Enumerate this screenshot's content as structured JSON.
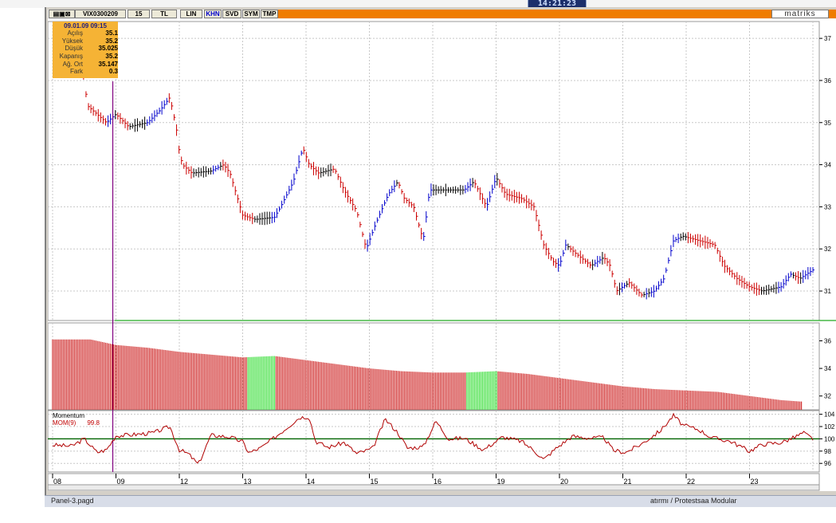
{
  "window": {
    "clock": "14:21:23",
    "brand": "matriks",
    "status_left": "Panel-3.pagd",
    "status_right": "atırmı / Protestsaa Modular",
    "toolbar": {
      "symbol": "VIX0300209",
      "interval": "15",
      "currency": "TL",
      "scale": "LIN",
      "buttons": [
        "KHN",
        "SVD",
        "SYM",
        "TMP"
      ]
    }
  },
  "info": {
    "date": "09.01.09 09:15",
    "rows": [
      {
        "label": "Açılış",
        "value": "35.1"
      },
      {
        "label": "Yüksek",
        "value": "35.2"
      },
      {
        "label": "Düşük",
        "value": "35.025"
      },
      {
        "label": "Kapanış",
        "value": "35.2"
      },
      {
        "label": "Ağ. Ort",
        "value": "35.147"
      },
      {
        "label": "Fark",
        "value": "0.3"
      }
    ]
  },
  "momentum": {
    "title": "Momentum",
    "name": "MOM(9)",
    "value": "99.8"
  },
  "colors": {
    "up": "#cc0000",
    "trend_black": "#000000",
    "trend_blue": "#0000cc",
    "vol_red": "#cc1c1c",
    "vol_green": "#33dd33",
    "mom_line": "#b00000",
    "mom_zero": "#006400",
    "grid": "#c8c8c8",
    "orange": "#ef7c00"
  },
  "chart_data": [
    {
      "type": "line",
      "title": "",
      "description_units": "price",
      "x": [
        "08",
        "09",
        "12",
        "13",
        "14",
        "15",
        "16",
        "19",
        "20",
        "21",
        "22",
        "23"
      ],
      "ylim": [
        30.3,
        37.4
      ],
      "yticks": [
        31,
        32,
        33,
        34,
        35,
        36,
        37
      ],
      "grid": true,
      "price_path": [
        [
          0.45,
          36.6
        ],
        [
          0.55,
          35.4
        ],
        [
          0.85,
          35.0
        ],
        [
          1.0,
          35.2
        ],
        [
          1.2,
          34.9
        ],
        [
          1.5,
          35.0
        ],
        [
          1.7,
          35.3
        ],
        [
          1.85,
          35.6
        ],
        [
          1.95,
          34.9
        ],
        [
          2.0,
          34.3
        ],
        [
          2.05,
          34.0
        ],
        [
          2.2,
          33.8
        ],
        [
          2.5,
          33.85
        ],
        [
          2.7,
          34.0
        ],
        [
          2.8,
          33.8
        ],
        [
          2.9,
          33.3
        ],
        [
          3.0,
          32.8
        ],
        [
          3.2,
          32.7
        ],
        [
          3.5,
          32.75
        ],
        [
          3.6,
          33.0
        ],
        [
          3.8,
          33.6
        ],
        [
          3.95,
          34.4
        ],
        [
          4.05,
          34.0
        ],
        [
          4.2,
          33.8
        ],
        [
          4.45,
          33.9
        ],
        [
          4.6,
          33.4
        ],
        [
          4.8,
          32.9
        ],
        [
          4.95,
          32.0
        ],
        [
          5.1,
          32.6
        ],
        [
          5.3,
          33.3
        ],
        [
          5.45,
          33.6
        ],
        [
          5.55,
          33.2
        ],
        [
          5.7,
          33.0
        ],
        [
          5.85,
          32.2
        ],
        [
          5.95,
          33.4
        ],
        [
          6.2,
          33.4
        ],
        [
          6.5,
          33.4
        ],
        [
          6.65,
          33.6
        ],
        [
          6.75,
          33.3
        ],
        [
          6.85,
          33.0
        ],
        [
          7.0,
          33.7
        ],
        [
          7.15,
          33.3
        ],
        [
          7.4,
          33.2
        ],
        [
          7.6,
          33.0
        ],
        [
          7.75,
          32.1
        ],
        [
          7.9,
          31.7
        ],
        [
          8.0,
          31.6
        ],
        [
          8.1,
          32.1
        ],
        [
          8.25,
          31.9
        ],
        [
          8.5,
          31.6
        ],
        [
          8.7,
          31.8
        ],
        [
          8.8,
          31.6
        ],
        [
          8.9,
          31.0
        ],
        [
          9.1,
          31.2
        ],
        [
          9.3,
          30.9
        ],
        [
          9.5,
          31.0
        ],
        [
          9.65,
          31.3
        ],
        [
          9.8,
          32.2
        ],
        [
          9.95,
          32.3
        ],
        [
          10.2,
          32.2
        ],
        [
          10.45,
          32.1
        ],
        [
          10.6,
          31.6
        ],
        [
          10.8,
          31.3
        ],
        [
          11.0,
          31.1
        ],
        [
          11.2,
          31.0
        ],
        [
          11.5,
          31.1
        ],
        [
          11.65,
          31.4
        ],
        [
          11.8,
          31.3
        ],
        [
          12.0,
          31.5
        ]
      ]
    },
    {
      "type": "bar",
      "title": "",
      "yticks": [
        32,
        34,
        36
      ],
      "ylim": [
        31,
        37.3
      ],
      "series_values": [
        [
          0.0,
          36.1
        ],
        [
          0.6,
          36.1
        ],
        [
          1.0,
          35.7
        ],
        [
          1.5,
          35.5
        ],
        [
          2.0,
          35.2
        ],
        [
          2.5,
          35.0
        ],
        [
          3.0,
          34.8
        ],
        [
          3.5,
          34.9
        ],
        [
          4.0,
          34.6
        ],
        [
          4.5,
          34.3
        ],
        [
          5.0,
          34.0
        ],
        [
          5.5,
          33.8
        ],
        [
          6.0,
          33.7
        ],
        [
          6.5,
          33.7
        ],
        [
          7.0,
          33.8
        ],
        [
          7.5,
          33.6
        ],
        [
          8.0,
          33.3
        ],
        [
          8.5,
          33.0
        ],
        [
          9.0,
          32.7
        ],
        [
          9.5,
          32.5
        ],
        [
          10.0,
          32.4
        ],
        [
          10.5,
          32.3
        ],
        [
          11.0,
          32.0
        ],
        [
          11.5,
          31.7
        ],
        [
          11.8,
          31.6
        ]
      ]
    },
    {
      "type": "line",
      "title": "",
      "series": [
        {
          "name": "MOM(9)",
          "value_label": "99.8"
        }
      ],
      "yticks": [
        96,
        98,
        100,
        102,
        104
      ],
      "ylim": [
        94.6,
        104.6
      ],
      "reference_line": 100,
      "mom_path": [
        [
          0.0,
          99.0
        ],
        [
          0.3,
          98.8
        ],
        [
          0.5,
          100.0
        ],
        [
          0.7,
          97.8
        ],
        [
          0.85,
          98.2
        ],
        [
          1.0,
          100.5
        ],
        [
          1.3,
          100.7
        ],
        [
          1.6,
          101.0
        ],
        [
          1.85,
          102.0
        ],
        [
          2.0,
          98.2
        ],
        [
          2.15,
          97.5
        ],
        [
          2.3,
          95.8
        ],
        [
          2.5,
          100.6
        ],
        [
          2.8,
          100.3
        ],
        [
          3.0,
          99.5
        ],
        [
          3.1,
          97.7
        ],
        [
          3.3,
          98.6
        ],
        [
          3.6,
          101.0
        ],
        [
          3.9,
          103.5
        ],
        [
          4.05,
          103.6
        ],
        [
          4.15,
          99.6
        ],
        [
          4.35,
          98.6
        ],
        [
          4.6,
          99.4
        ],
        [
          4.8,
          97.6
        ],
        [
          5.05,
          98.4
        ],
        [
          5.25,
          103.2
        ],
        [
          5.45,
          101.0
        ],
        [
          5.6,
          98.5
        ],
        [
          5.85,
          98.7
        ],
        [
          6.05,
          102.9
        ],
        [
          6.25,
          100.0
        ],
        [
          6.5,
          100.1
        ],
        [
          6.8,
          98.2
        ],
        [
          7.1,
          100.3
        ],
        [
          7.4,
          99.6
        ],
        [
          7.6,
          98.1
        ],
        [
          7.75,
          96.6
        ],
        [
          7.95,
          98.5
        ],
        [
          8.2,
          100.4
        ],
        [
          8.5,
          100.1
        ],
        [
          8.7,
          100.2
        ],
        [
          8.85,
          98.1
        ],
        [
          9.05,
          97.8
        ],
        [
          9.3,
          99.2
        ],
        [
          9.6,
          101.4
        ],
        [
          9.8,
          103.8
        ],
        [
          9.95,
          102.2
        ],
        [
          10.2,
          101.5
        ],
        [
          10.4,
          100.2
        ],
        [
          10.7,
          99.6
        ],
        [
          11.0,
          98.0
        ],
        [
          11.2,
          99.1
        ],
        [
          11.5,
          99.4
        ],
        [
          11.7,
          100.2
        ],
        [
          11.85,
          101.0
        ],
        [
          12.0,
          100.0
        ]
      ]
    }
  ]
}
